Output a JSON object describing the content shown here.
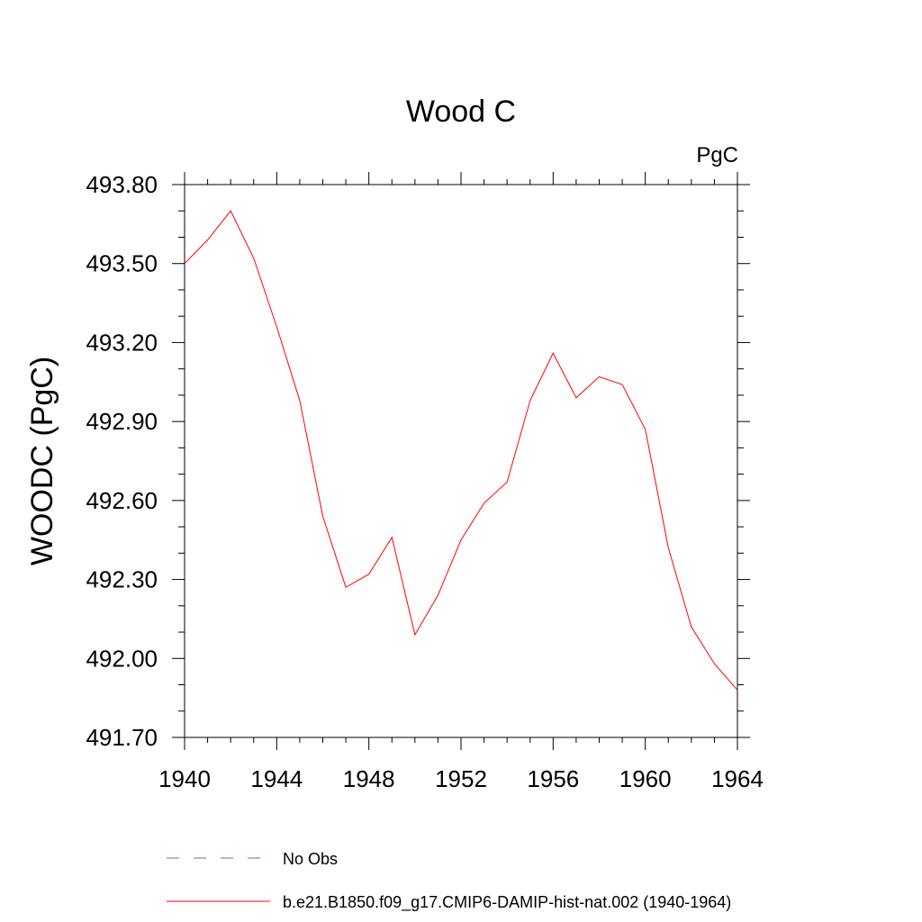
{
  "chart_data": {
    "type": "line",
    "title": "Wood C",
    "units_label": "PgC",
    "xlabel": "",
    "ylabel": "WOODC  (PgC)",
    "xlim": [
      1940,
      1964
    ],
    "ylim": [
      491.7,
      493.8
    ],
    "x_ticks": [
      1940,
      1944,
      1948,
      1952,
      1956,
      1960,
      1964
    ],
    "x_tick_labels": [
      "1940",
      "1944",
      "1948",
      "1952",
      "1956",
      "1960",
      "1964"
    ],
    "y_ticks": [
      491.7,
      492.0,
      492.3,
      492.6,
      492.9,
      493.2,
      493.5,
      493.8
    ],
    "y_tick_labels": [
      "491.70",
      "492.00",
      "492.30",
      "492.60",
      "492.90",
      "493.20",
      "493.50",
      "493.80"
    ],
    "grid": false,
    "legend_placement": "bottom",
    "legend": [
      {
        "label": "No Obs",
        "color": "#6666cc",
        "style": "dashed"
      },
      {
        "label": "b.e21.B1850.f09_g17.CMIP6-DAMIP-hist-nat.002 (1940-1964)",
        "color": "#ff0000",
        "style": "solid"
      }
    ],
    "series": [
      {
        "name": "b.e21.B1850.f09_g17.CMIP6-DAMIP-hist-nat.002 (1940-1964)",
        "color": "#ff0000",
        "x": [
          1940,
          1941,
          1942,
          1943,
          1944,
          1945,
          1946,
          1947,
          1948,
          1949,
          1950,
          1951,
          1952,
          1953,
          1954,
          1955,
          1956,
          1957,
          1958,
          1959,
          1960,
          1961,
          1962,
          1963,
          1964
        ],
        "values": [
          493.5,
          493.59,
          493.7,
          493.52,
          493.26,
          492.98,
          492.54,
          492.27,
          492.32,
          492.46,
          492.09,
          492.24,
          492.45,
          492.59,
          492.67,
          492.98,
          493.16,
          492.99,
          493.07,
          493.04,
          492.87,
          492.42,
          492.12,
          491.98,
          491.88
        ]
      }
    ]
  }
}
